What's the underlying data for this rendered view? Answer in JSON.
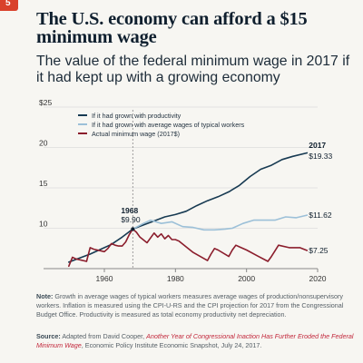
{
  "header": {
    "badge": "5",
    "title": "The U.S. economy can afford a $15 minimum wage",
    "subtitle": "The value of the federal minimum wage in 2017 if it had kept up with a growing economy"
  },
  "colors": {
    "productivity": "#173a52",
    "wages": "#9cc0d8",
    "actual": "#8b1d2c",
    "grid": "#dcdcdc",
    "axis": "#888888"
  },
  "chart_data": {
    "type": "line",
    "xlim": [
      1948,
      2020
    ],
    "ylim": [
      5,
      25
    ],
    "x_ticks": [
      1960,
      1980,
      2000,
      2020
    ],
    "y_ticks": [
      5,
      10,
      15,
      20,
      25
    ],
    "y_tick_labels": [
      "",
      "10",
      "15",
      "20",
      "$25"
    ],
    "grid": true,
    "legend": "top-left",
    "reference_year": 1968,
    "series": [
      {
        "name": "If it had grown with productivity",
        "color_key": "productivity",
        "x": [
          1950,
          1953,
          1956,
          1959,
          1962,
          1965,
          1968,
          1971,
          1974,
          1977,
          1980,
          1983,
          1986,
          1989,
          1992,
          1995,
          1998,
          2001,
          2004,
          2007,
          2010,
          2013,
          2017
        ],
        "y": [
          5.8,
          6.3,
          6.8,
          7.4,
          8.0,
          8.9,
          9.9,
          10.4,
          10.9,
          11.4,
          11.7,
          12.1,
          12.8,
          13.4,
          13.9,
          14.5,
          15.3,
          16.4,
          17.3,
          17.8,
          18.5,
          18.9,
          19.33
        ]
      },
      {
        "name": "If it had grown with average wages of typical workers",
        "color_key": "wages",
        "x": [
          1968,
          1971,
          1973,
          1976,
          1979,
          1982,
          1985,
          1988,
          1991,
          1994,
          1996,
          1999,
          2002,
          2005,
          2008,
          2011,
          2014,
          2017
        ],
        "y": [
          9.9,
          10.6,
          11.0,
          10.6,
          10.8,
          10.2,
          10.1,
          9.8,
          9.8,
          9.9,
          10.0,
          10.6,
          11.0,
          11.0,
          11.0,
          11.4,
          11.3,
          11.62
        ]
      },
      {
        "name": "Actual minimum wage (2017$)",
        "color_key": "actual",
        "x": [
          1950,
          1951,
          1952,
          1955,
          1956,
          1957,
          1960,
          1961,
          1962,
          1963,
          1964,
          1965,
          1966,
          1967,
          1968,
          1969,
          1970,
          1972,
          1974,
          1975,
          1976,
          1977,
          1978,
          1979,
          1980,
          1981,
          1985,
          1989,
          1990,
          1991,
          1992,
          1995,
          1996,
          1997,
          1998,
          2000,
          2003,
          2006,
          2007,
          2008,
          2009,
          2012,
          2015,
          2017
        ],
        "y": [
          5.3,
          6.4,
          6.2,
          5.9,
          7.6,
          7.4,
          7.1,
          7.5,
          8.1,
          7.9,
          7.8,
          7.8,
          8.3,
          9.2,
          9.9,
          9.5,
          8.9,
          8.2,
          9.4,
          8.9,
          9.3,
          8.7,
          9.1,
          8.6,
          8.6,
          8.4,
          7.0,
          6.0,
          6.8,
          7.5,
          7.3,
          6.5,
          7.3,
          7.9,
          7.7,
          7.3,
          6.6,
          5.9,
          6.5,
          7.2,
          7.9,
          7.6,
          7.6,
          7.25
        ]
      }
    ],
    "annotations": {
      "start_year": "1968",
      "start_value": "$9.90",
      "end_year": "2017",
      "productivity_value": "$19.33",
      "wages_value": "$11.62",
      "actual_value": "$7.25"
    }
  },
  "footer": {
    "note_label": "Note:",
    "note_text": "Growth in average wages of typical workers measures average wages of production/nonsupervisory workers. Inflation is measured using the CPI-U-RS and the CPI projection for 2017 from the Congressional Budget Office. Productivity is measured as total economy productivity net depreciation.",
    "source_label": "Source:",
    "source_prefix": "Adapted from David Cooper,",
    "source_title": "Another Year of Congressional Inaction Has Further Eroded the Federal Minimum Wage",
    "source_suffix": ", Economic Policy Institute Economic Snapshot, July 24, 2017."
  }
}
